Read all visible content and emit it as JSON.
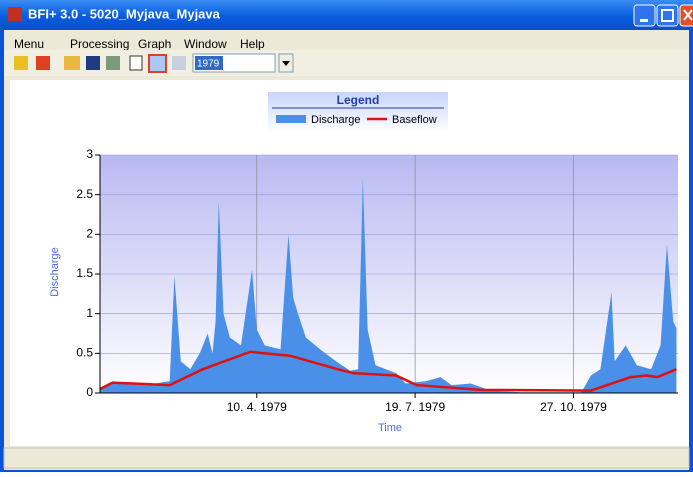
{
  "window": {
    "title": "BFI+ 3.0 - 5020_Myjava_Myjava",
    "menu": [
      "Menu",
      "Processing",
      "Graph",
      "Window",
      "Help"
    ],
    "year": "1979"
  },
  "chart_data": {
    "type": "area-line",
    "legend_title": "Legend",
    "xlabel": "Time",
    "ylabel": "Discharge",
    "xlim": [
      "1979-01-01",
      "1980-01-01"
    ],
    "xticks": [
      {
        "value": "1979-04-10",
        "label": "10. 4. 1979"
      },
      {
        "value": "1979-07-19",
        "label": "19. 7. 1979"
      },
      {
        "value": "1979-10-27",
        "label": "27. 10. 1979"
      }
    ],
    "ylim": [
      0,
      3
    ],
    "yticks": [
      0,
      0.5,
      1,
      1.5,
      2,
      2.5,
      3
    ],
    "grid": true,
    "series": [
      {
        "name": "Discharge",
        "color": "#4a90e8",
        "style": "area",
        "x": [
          "1979-01-01",
          "1979-01-07",
          "1979-01-16",
          "1979-01-26",
          "1979-02-05",
          "1979-02-14",
          "1979-02-17",
          "1979-02-21",
          "1979-02-27",
          "1979-03-05",
          "1979-03-10",
          "1979-03-13",
          "1979-03-15",
          "1979-03-17",
          "1979-03-20",
          "1979-03-24",
          "1979-03-31",
          "1979-04-07",
          "1979-04-10",
          "1979-04-15",
          "1979-04-25",
          "1979-04-30",
          "1979-05-03",
          "1979-05-06",
          "1979-05-11",
          "1979-05-20",
          "1979-05-30",
          "1979-06-08",
          "1979-06-13",
          "1979-06-16",
          "1979-06-19",
          "1979-06-24",
          "1979-07-07",
          "1979-07-13",
          "1979-07-26",
          "1979-08-04",
          "1979-08-11",
          "1979-08-23",
          "1979-09-05",
          "1979-09-24",
          "1979-11-01",
          "1979-11-07",
          "1979-11-13",
          "1979-11-20",
          "1979-11-22",
          "1979-11-29",
          "1979-12-06",
          "1979-12-15",
          "1979-12-21",
          "1979-12-25",
          "1979-12-29",
          "1979-12-31"
        ],
        "values": [
          0.05,
          0.13,
          0.12,
          0.1,
          0.12,
          0.15,
          1.47,
          0.4,
          0.3,
          0.5,
          0.75,
          0.5,
          0.9,
          2.42,
          1.0,
          0.7,
          0.6,
          1.55,
          0.8,
          0.6,
          0.55,
          2.0,
          1.2,
          1.0,
          0.7,
          0.55,
          0.4,
          0.28,
          0.3,
          2.7,
          0.8,
          0.35,
          0.25,
          0.12,
          0.15,
          0.2,
          0.1,
          0.12,
          0.03,
          0.01,
          0.01,
          0.22,
          0.3,
          1.27,
          0.4,
          0.6,
          0.35,
          0.3,
          0.6,
          1.87,
          0.9,
          0.82
        ]
      },
      {
        "name": "Baseflow",
        "color": "#e01010",
        "style": "line",
        "x": [
          "1979-01-01",
          "1979-01-09",
          "1979-02-14",
          "1979-03-07",
          "1979-04-06",
          "1979-04-15",
          "1979-05-01",
          "1979-05-31",
          "1979-06-10",
          "1979-07-07",
          "1979-07-20",
          "1979-08-29",
          "1979-11-07",
          "1979-12-02",
          "1979-12-12",
          "1979-12-19",
          "1979-12-31"
        ],
        "values": [
          0.05,
          0.13,
          0.1,
          0.3,
          0.52,
          0.5,
          0.47,
          0.3,
          0.25,
          0.22,
          0.1,
          0.04,
          0.03,
          0.2,
          0.22,
          0.2,
          0.3
        ]
      }
    ]
  }
}
